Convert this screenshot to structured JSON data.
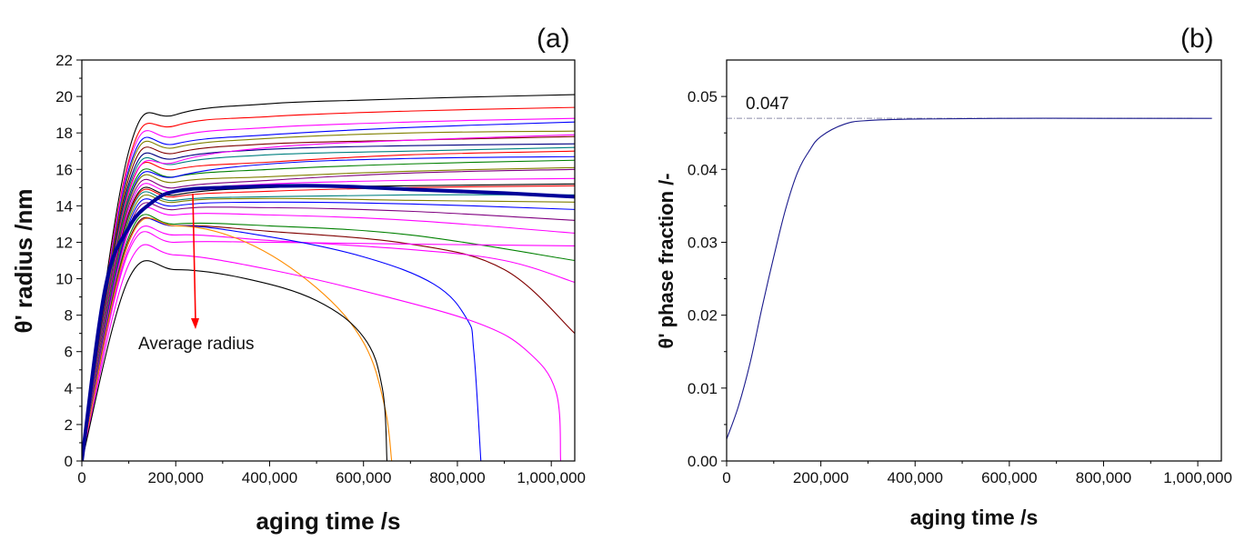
{
  "chart_data": [
    {
      "panel": "(a)",
      "type": "line",
      "xlabel": "aging time /s",
      "ylabel": "θ' radius /nm",
      "xlim": [
        0,
        1050000
      ],
      "ylim": [
        0,
        22
      ],
      "xticks": [
        0,
        200000,
        400000,
        600000,
        800000,
        1000000
      ],
      "xtick_labels": [
        "0",
        "200,000",
        "400,000",
        "600,000",
        "800,000",
        "1,000,000"
      ],
      "yticks": [
        0,
        2,
        4,
        6,
        8,
        10,
        12,
        14,
        16,
        18,
        20,
        22
      ],
      "ytick_labels": [
        "0",
        "2",
        "4",
        "6",
        "8",
        "10",
        "12",
        "14",
        "16",
        "18",
        "20",
        "22"
      ],
      "annotation": "Average radius",
      "series": [
        {
          "color": "#000000",
          "values": [
            [
              0,
              0
            ],
            [
              100000,
              17
            ],
            [
              200000,
              19
            ],
            [
              400000,
              19.6
            ],
            [
              600000,
              19.8
            ],
            [
              800000,
              19.95
            ],
            [
              1050000,
              20.1
            ]
          ]
        },
        {
          "color": "#ff0000",
          "values": [
            [
              0,
              0
            ],
            [
              100000,
              16.5
            ],
            [
              200000,
              18.4
            ],
            [
              400000,
              18.9
            ],
            [
              700000,
              19.2
            ],
            [
              1050000,
              19.4
            ]
          ]
        },
        {
          "color": "#ff00ff",
          "values": [
            [
              0,
              0
            ],
            [
              100000,
              16.3
            ],
            [
              200000,
              17.8
            ],
            [
              400000,
              18.3
            ],
            [
              700000,
              18.6
            ],
            [
              1050000,
              18.8
            ]
          ]
        },
        {
          "color": "#0000ff",
          "values": [
            [
              0,
              0
            ],
            [
              100000,
              16
            ],
            [
              200000,
              17.4
            ],
            [
              400000,
              17.9
            ],
            [
              700000,
              18.3
            ],
            [
              1050000,
              18.6
            ]
          ]
        },
        {
          "color": "#808000",
          "values": [
            [
              0,
              0
            ],
            [
              100000,
              15.8
            ],
            [
              200000,
              17.2
            ],
            [
              400000,
              17.7
            ],
            [
              700000,
              18
            ],
            [
              1050000,
              18.1
            ]
          ]
        },
        {
          "color": "#800000",
          "values": [
            [
              0,
              0
            ],
            [
              100000,
              15.5
            ],
            [
              200000,
              16.9
            ],
            [
              400000,
              17.4
            ],
            [
              700000,
              17.6
            ],
            [
              1050000,
              17.8
            ]
          ]
        },
        {
          "color": "#000080",
          "values": [
            [
              0,
              0
            ],
            [
              100000,
              15.2
            ],
            [
              200000,
              16.6
            ],
            [
              400000,
              17.1
            ],
            [
              700000,
              17.3
            ],
            [
              1050000,
              17.4
            ]
          ]
        },
        {
          "color": "#008080",
          "values": [
            [
              0,
              0
            ],
            [
              100000,
              15
            ],
            [
              200000,
              16.3
            ],
            [
              400000,
              16.8
            ],
            [
              700000,
              17
            ],
            [
              1050000,
              17.2
            ]
          ]
        },
        {
          "color": "#ff0000",
          "values": [
            [
              0,
              0
            ],
            [
              100000,
              14.8
            ],
            [
              200000,
              16
            ],
            [
              400000,
              16.4
            ],
            [
              700000,
              16.8
            ],
            [
              1050000,
              17
            ]
          ]
        },
        {
          "color": "#ff00ff",
          "values": [
            [
              0,
              0
            ],
            [
              100000,
              14.7
            ],
            [
              200000,
              16.4
            ],
            [
              400000,
              17.2
            ],
            [
              700000,
              17.6
            ],
            [
              1050000,
              17.9
            ]
          ]
        },
        {
          "color": "#008000",
          "values": [
            [
              0,
              0
            ],
            [
              100000,
              14.5
            ],
            [
              200000,
              15.6
            ],
            [
              400000,
              16
            ],
            [
              700000,
              16.3
            ],
            [
              1050000,
              16.5
            ]
          ]
        },
        {
          "color": "#0000ff",
          "values": [
            [
              0,
              0
            ],
            [
              100000,
              14.3
            ],
            [
              200000,
              15.6
            ],
            [
              400000,
              16.3
            ],
            [
              700000,
              16.6
            ],
            [
              1050000,
              16.7
            ]
          ]
        },
        {
          "color": "#808000",
          "values": [
            [
              0,
              0
            ],
            [
              100000,
              14.2
            ],
            [
              200000,
              15.3
            ],
            [
              400000,
              15.6
            ],
            [
              700000,
              15.9
            ],
            [
              1050000,
              16.1
            ]
          ]
        },
        {
          "color": "#800080",
          "values": [
            [
              0,
              0
            ],
            [
              100000,
              14
            ],
            [
              200000,
              15
            ],
            [
              400000,
              15.4
            ],
            [
              700000,
              15.8
            ],
            [
              1050000,
              16
            ]
          ]
        },
        {
          "color": "#ff00ff",
          "values": [
            [
              0,
              0
            ],
            [
              100000,
              13.8
            ],
            [
              200000,
              14.8
            ],
            [
              400000,
              15.2
            ],
            [
              700000,
              15.4
            ],
            [
              1050000,
              15.5
            ]
          ]
        },
        {
          "color": "#000000",
          "values": [
            [
              0,
              0
            ],
            [
              100000,
              13.6
            ],
            [
              200000,
              14.6
            ],
            [
              400000,
              15
            ],
            [
              700000,
              15.1
            ],
            [
              1050000,
              15.2
            ]
          ]
        },
        {
          "color": "#ff0000",
          "values": [
            [
              0,
              0
            ],
            [
              100000,
              13.5
            ],
            [
              200000,
              14.5
            ],
            [
              400000,
              14.8
            ],
            [
              700000,
              15
            ],
            [
              1050000,
              15.1
            ]
          ]
        },
        {
          "color": "#008080",
          "values": [
            [
              0,
              0
            ],
            [
              100000,
              13.4
            ],
            [
              200000,
              14.3
            ],
            [
              400000,
              14.5
            ],
            [
              700000,
              14.6
            ],
            [
              1050000,
              14.6
            ]
          ]
        },
        {
          "color": "#808000",
          "values": [
            [
              0,
              0
            ],
            [
              100000,
              13.2
            ],
            [
              200000,
              14.2
            ],
            [
              400000,
              14.4
            ],
            [
              700000,
              14.3
            ],
            [
              1050000,
              14.2
            ]
          ]
        },
        {
          "color": "#0000ff",
          "values": [
            [
              0,
              0
            ],
            [
              100000,
              13
            ],
            [
              200000,
              14
            ],
            [
              400000,
              14.2
            ],
            [
              700000,
              14.1
            ],
            [
              1050000,
              13.8
            ]
          ]
        },
        {
          "color": "#800080",
          "values": [
            [
              0,
              0
            ],
            [
              100000,
              12.8
            ],
            [
              200000,
              13.8
            ],
            [
              400000,
              13.9
            ],
            [
              700000,
              13.7
            ],
            [
              1050000,
              13.2
            ]
          ]
        },
        {
          "color": "#ff00ff",
          "values": [
            [
              0,
              0
            ],
            [
              100000,
              12.6
            ],
            [
              200000,
              13.5
            ],
            [
              400000,
              13.5
            ],
            [
              700000,
              13.2
            ],
            [
              1050000,
              12.5
            ]
          ]
        },
        {
          "color": "#008000",
          "values": [
            [
              0,
              0
            ],
            [
              100000,
              12.3
            ],
            [
              200000,
              13
            ],
            [
              400000,
              12.9
            ],
            [
              700000,
              12.4
            ],
            [
              1050000,
              11
            ]
          ]
        },
        {
          "color": "#800000",
          "values": [
            [
              0,
              0
            ],
            [
              100000,
              12.1
            ],
            [
              200000,
              12.9
            ],
            [
              400000,
              12.6
            ],
            [
              700000,
              11.9
            ],
            [
              900000,
              10.5
            ],
            [
              1050000,
              7
            ]
          ]
        },
        {
          "color": "#ff00ff",
          "values": [
            [
              0,
              0
            ],
            [
              100000,
              11.7
            ],
            [
              200000,
              12.4
            ],
            [
              400000,
              12.1
            ],
            [
              700000,
              11.6
            ],
            [
              900000,
              11
            ],
            [
              1050000,
              9.8
            ]
          ]
        },
        {
          "color": "#ff00ff",
          "values": [
            [
              0,
              0
            ],
            [
              100000,
              11.5
            ],
            [
              200000,
              12
            ],
            [
              400000,
              12
            ],
            [
              700000,
              11.9
            ],
            [
              1050000,
              11.8
            ]
          ]
        },
        {
          "color": "#0000ff",
          "values": [
            [
              0,
              0
            ],
            [
              100000,
              12
            ],
            [
              200000,
              12.9
            ],
            [
              400000,
              12.3
            ],
            [
              600000,
              11.2
            ],
            [
              750000,
              9.7
            ],
            [
              820000,
              7.8
            ],
            [
              835000,
              6
            ],
            [
              850000,
              0
            ]
          ]
        },
        {
          "color": "#ff8c00",
          "values": [
            [
              0,
              0
            ],
            [
              100000,
              12
            ],
            [
              200000,
              12.9
            ],
            [
              350000,
              12
            ],
            [
              500000,
              9.5
            ],
            [
              600000,
              6.5
            ],
            [
              645000,
              3
            ],
            [
              660000,
              0
            ]
          ]
        },
        {
          "color": "#ff00ff",
          "values": [
            [
              0,
              0
            ],
            [
              100000,
              10.8
            ],
            [
              200000,
              11.3
            ],
            [
              400000,
              10.5
            ],
            [
              650000,
              9
            ],
            [
              850000,
              7.5
            ],
            [
              950000,
              6
            ],
            [
              1010000,
              3.8
            ],
            [
              1020000,
              0
            ]
          ]
        },
        {
          "color": "#000000",
          "values": [
            [
              0,
              0
            ],
            [
              100000,
              10
            ],
            [
              200000,
              10.5
            ],
            [
              350000,
              10
            ],
            [
              500000,
              8.8
            ],
            [
              600000,
              6.8
            ],
            [
              640000,
              4
            ],
            [
              650000,
              0
            ]
          ]
        },
        {
          "color": "#000099",
          "width": 4,
          "values": [
            [
              0,
              0
            ],
            [
              50000,
              9.5
            ],
            [
              100000,
              12.8
            ],
            [
              150000,
              14.2
            ],
            [
              200000,
              14.8
            ],
            [
              300000,
              15
            ],
            [
              500000,
              15.1
            ],
            [
              700000,
              14.9
            ],
            [
              900000,
              14.7
            ],
            [
              1050000,
              14.5
            ]
          ]
        }
      ]
    },
    {
      "panel": "(b)",
      "type": "line",
      "xlabel": "aging time /s",
      "ylabel": "θ' phase fraction /-",
      "xlim": [
        0,
        1050000
      ],
      "ylim": [
        0,
        0.055
      ],
      "xticks": [
        0,
        200000,
        400000,
        600000,
        800000,
        1000000
      ],
      "xtick_labels": [
        "0",
        "200,000",
        "400,000",
        "600,000",
        "800,000",
        "1,000,000"
      ],
      "yticks": [
        0,
        0.01,
        0.02,
        0.03,
        0.04,
        0.05
      ],
      "ytick_labels": [
        "0.00",
        "0.01",
        "0.02",
        "0.03",
        "0.04",
        "0.05"
      ],
      "reference_line": {
        "value": 0.047,
        "label": "0.047"
      },
      "series": [
        {
          "color": "#1a1a8c",
          "values": [
            [
              0,
              0.003
            ],
            [
              25000,
              0.0075
            ],
            [
              50000,
              0.0135
            ],
            [
              75000,
              0.021
            ],
            [
              100000,
              0.028
            ],
            [
              125000,
              0.0345
            ],
            [
              150000,
              0.0395
            ],
            [
              175000,
              0.0425
            ],
            [
              200000,
              0.0445
            ],
            [
              250000,
              0.0462
            ],
            [
              300000,
              0.0467
            ],
            [
              400000,
              0.0469
            ],
            [
              600000,
              0.047
            ],
            [
              800000,
              0.047
            ],
            [
              1030000,
              0.047
            ]
          ]
        }
      ]
    }
  ]
}
